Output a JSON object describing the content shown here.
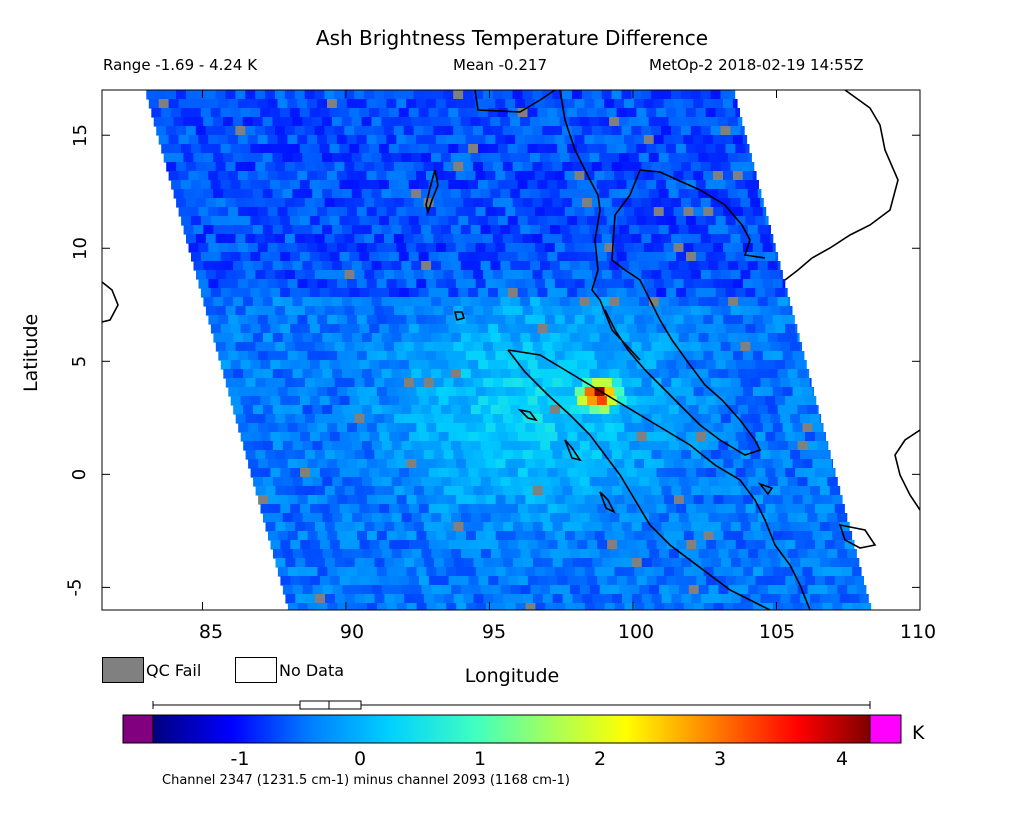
{
  "title": "Ash Brightness Temperature Difference",
  "header": {
    "range": "Range -1.69 - 4.24 K",
    "mean": "Mean -0.217",
    "satellite_time": "MetOp-2 2018-02-19 14:55Z"
  },
  "axes": {
    "xlabel": "Longitude",
    "ylabel": "Latitude",
    "x_ticks": [
      "85",
      "90",
      "95",
      "100",
      "105",
      "110"
    ],
    "y_ticks": [
      "15",
      "10",
      "5",
      "0",
      "-5"
    ],
    "xlim": [
      81.5,
      110
    ],
    "ylim": [
      -6,
      17
    ]
  },
  "legend": {
    "qc_fail": "QC Fail",
    "no_data": "No Data",
    "qc_color": "#808080"
  },
  "colorbar": {
    "unit": "K",
    "ticks": [
      "-1",
      "0",
      "1",
      "2",
      "3",
      "4"
    ],
    "range": [
      -1.69,
      4.24
    ],
    "underflow_color": "#800080",
    "overflow_color": "#ff00ff",
    "boxplot": {
      "min": -1.69,
      "q1": -0.5,
      "median": -0.25,
      "q3": 0.05,
      "max": 4.24
    }
  },
  "footnote": "Channel 2347 (1231.5 cm-1) minus channel 2093 (1168 cm-1)",
  "map": {
    "swath_corners": [
      [
        83.0,
        17
      ],
      [
        103.5,
        17
      ],
      [
        108.3,
        -6
      ],
      [
        88.0,
        -6
      ]
    ],
    "hotspot": {
      "lon": 98.8,
      "lat": 3.5,
      "value": 4.24
    },
    "background_value": -0.4
  }
}
